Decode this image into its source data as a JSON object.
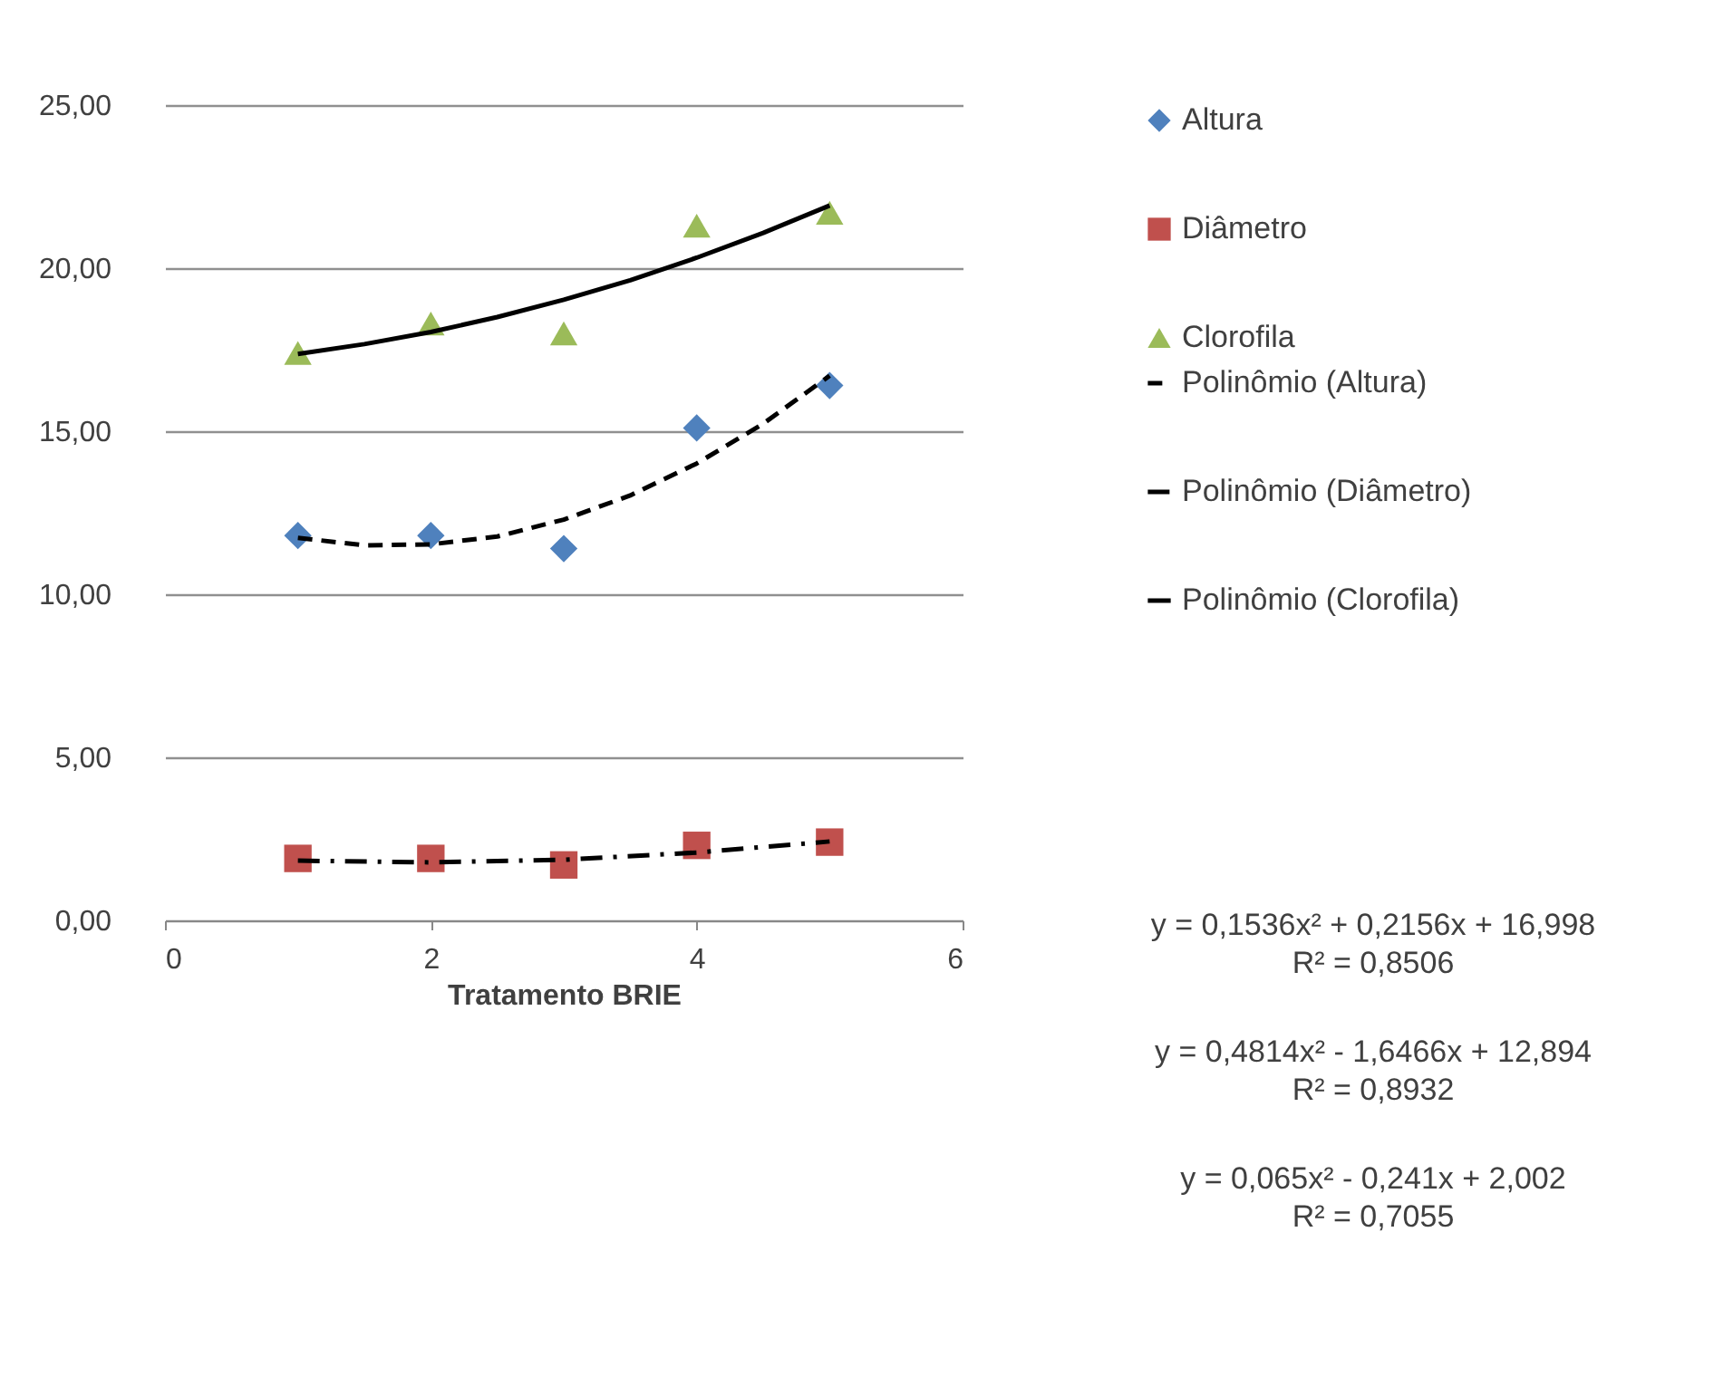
{
  "chart_data": {
    "type": "scatter",
    "xlabel": "Tratamento BRIE",
    "x": [
      1,
      2,
      3,
      4,
      5
    ],
    "series": [
      {
        "name": "Altura",
        "marker": "diamond",
        "color": "#4f81bd",
        "values": [
          11.8,
          11.8,
          11.4,
          15.1,
          16.4
        ]
      },
      {
        "name": "Diâmetro",
        "marker": "square",
        "color": "#c0504d",
        "values": [
          1.9,
          1.9,
          1.7,
          2.3,
          2.4
        ]
      },
      {
        "name": "Clorofila",
        "marker": "triangle",
        "color": "#9bbb59",
        "values": [
          17.4,
          18.3,
          18.0,
          21.3,
          21.7
        ]
      },
      {
        "name": "Polinômio (Altura)",
        "type": "line",
        "line_style": "dashed",
        "color": "#000000",
        "x": [
          1,
          1.5,
          2,
          2.5,
          3,
          3.5,
          4,
          4.5,
          5
        ],
        "values": [
          11.73,
          11.5,
          11.53,
          11.77,
          12.29,
          13.03,
          14.01,
          15.23,
          16.7
        ]
      },
      {
        "name": "Polinômio (Diâmetro)",
        "type": "line",
        "line_style": "dashdot",
        "color": "#000000",
        "x": [
          1,
          2,
          3,
          4,
          5
        ],
        "values": [
          1.83,
          1.78,
          1.86,
          2.08,
          2.42
        ]
      },
      {
        "name": "Polinômio (Clorofila)",
        "type": "line",
        "line_style": "solid",
        "color": "#000000",
        "x": [
          1,
          1.5,
          2,
          2.5,
          3,
          3.5,
          4,
          4.5,
          5
        ],
        "values": [
          17.37,
          17.67,
          18.04,
          18.5,
          19.03,
          19.63,
          20.32,
          21.08,
          21.92
        ]
      }
    ],
    "xlim": [
      0,
      6
    ],
    "xticks": [
      0,
      2,
      4,
      6
    ],
    "ylim": [
      0,
      25
    ],
    "yticks": [
      {
        "value": 0,
        "label": "0,00"
      },
      {
        "value": 5,
        "label": "5,00"
      },
      {
        "value": 10,
        "label": "10,00"
      },
      {
        "value": 15,
        "label": "15,00"
      },
      {
        "value": 20,
        "label": "20,00"
      },
      {
        "value": 25,
        "label": "25,00"
      }
    ],
    "grid": "y",
    "legend": "right",
    "annotations": [
      "y = 0,1536x² + 0,2156x + 16,998",
      "R² = 0,8506",
      "y = 0,4814x² - 1,6466x + 12,894",
      "R² = 0,8932",
      "y = 0,065x² - 0,241x + 2,002",
      "R² = 0,7055"
    ]
  }
}
